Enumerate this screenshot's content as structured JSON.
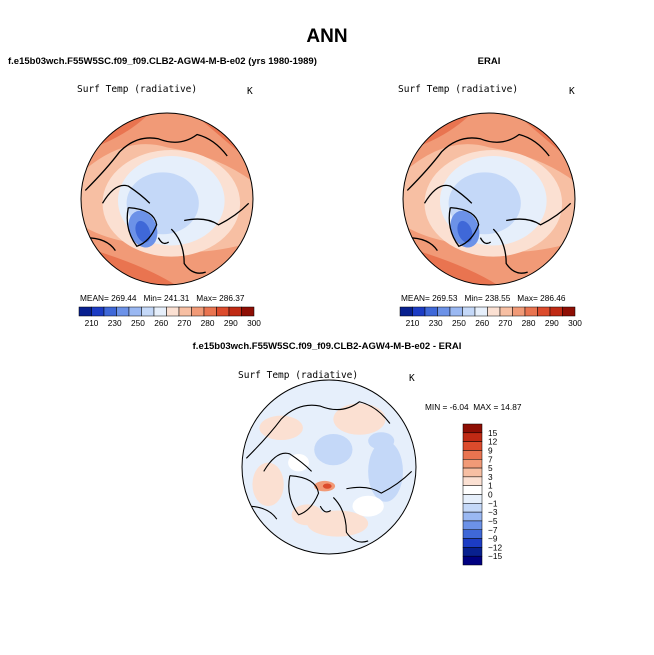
{
  "title": "ANN",
  "panels": [
    {
      "name": "model",
      "title": "f.e15b03wch.F55W5SC.f09_f09.CLB2-AGW4-M-B-e02 (yrs 1980-1989)",
      "variable": "Surf Temp (radiative)",
      "units": "K",
      "mean_label": "MEAN=",
      "mean": "269.44",
      "min_label": "Min=",
      "min": "241.31",
      "max_label": "Max=",
      "max": "286.37"
    },
    {
      "name": "obs",
      "title": "ERAI",
      "variable": "Surf Temp (radiative)",
      "units": "K",
      "mean_label": "MEAN=",
      "mean": "269.53",
      "min_label": "Min=",
      "min": "238.55",
      "max_label": "Max=",
      "max": "286.46"
    },
    {
      "name": "difference",
      "title": "f.e15b03wch.F55W5SC.f09_f09.CLB2-AGW4-M-B-e02 - ERAI",
      "variable": "Surf Temp (radiative)",
      "units": "K",
      "min_label": "MIN =",
      "min": "-6.04",
      "max_label": "MAX =",
      "max": "14.87"
    }
  ],
  "chart_data": [
    {
      "type": "heatmap",
      "title": "f.e15b03wch.F55W5SC.f09_f09.CLB2-AGW4-M-B-e02 (yrs 1980-1989)",
      "projection": "north polar stereographic",
      "variable": "Surf Temp (radiative)",
      "units": "K",
      "stats": {
        "mean": 269.44,
        "min": 241.31,
        "max": 286.37
      },
      "colorbar_levels": [
        210,
        230,
        250,
        260,
        270,
        280,
        290,
        300
      ],
      "colorbar_colors": [
        "#08208f",
        "#1c3cc4",
        "#3f68d8",
        "#6c92e8",
        "#9ab8f2",
        "#c4d8f8",
        "#e6effb",
        "#fbe0d2",
        "#f7bfa3",
        "#f19a77",
        "#e97450",
        "#dc4b2c",
        "#c02a14",
        "#8e0e04"
      ]
    },
    {
      "type": "heatmap",
      "title": "ERAI",
      "projection": "north polar stereographic",
      "variable": "Surf Temp (radiative)",
      "units": "K",
      "stats": {
        "mean": 269.53,
        "min": 238.55,
        "max": 286.46
      },
      "colorbar_levels": [
        210,
        230,
        250,
        260,
        270,
        280,
        290,
        300
      ],
      "colorbar_colors": [
        "#08208f",
        "#1c3cc4",
        "#3f68d8",
        "#6c92e8",
        "#9ab8f2",
        "#c4d8f8",
        "#e6effb",
        "#fbe0d2",
        "#f7bfa3",
        "#f19a77",
        "#e97450",
        "#dc4b2c",
        "#c02a14",
        "#8e0e04"
      ]
    },
    {
      "type": "heatmap",
      "title": "f.e15b03wch.F55W5SC.f09_f09.CLB2-AGW4-M-B-e02 - ERAI",
      "projection": "north polar stereographic",
      "variable": "Surf Temp (radiative)",
      "units": "K",
      "stats": {
        "min": -6.04,
        "max": 14.87
      },
      "colorbar_levels": [
        15,
        12,
        9,
        7,
        5,
        3,
        1,
        0,
        -1,
        -3,
        -5,
        -7,
        -9,
        -12,
        -15
      ],
      "colorbar_colors": [
        "#8e0e04",
        "#c02a14",
        "#dc4b2c",
        "#e97450",
        "#f19a77",
        "#f7bfa3",
        "#fbe0d2",
        "#ffffff",
        "#e6effb",
        "#c4d8f8",
        "#9ab8f2",
        "#6c92e8",
        "#3f68d8",
        "#1c3cc4",
        "#08208f",
        "#000080"
      ]
    }
  ]
}
